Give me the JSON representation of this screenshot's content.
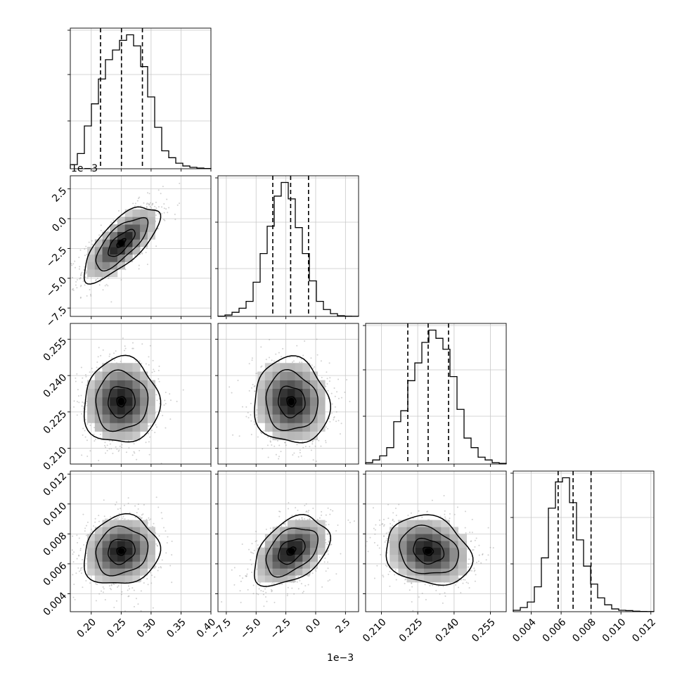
{
  "chart_data": {
    "type": "corner",
    "grid": true,
    "quantile_lines": "dashed",
    "parameters": [
      {
        "range": [
          0.165,
          0.4
        ],
        "ticks": [
          0.2,
          0.25,
          0.3,
          0.35,
          0.4
        ],
        "tick_labels": [
          "0.20",
          "0.25",
          "0.30",
          "0.35",
          "0.40"
        ],
        "quantiles": [
          0.2155,
          0.2505,
          0.2855
        ],
        "offset": ""
      },
      {
        "range": [
          -8.2,
          3.6
        ],
        "ticks": [
          -7.5,
          -5.0,
          -2.5,
          0.0,
          2.5
        ],
        "tick_labels": [
          "−7.5",
          "−5.0",
          "−2.5",
          "0.0",
          "2.5"
        ],
        "quantiles": [
          -3.6,
          -2.1,
          -0.6
        ],
        "offset": "1e−3"
      },
      {
        "range": [
          0.2035,
          0.2615
        ],
        "ticks": [
          0.21,
          0.225,
          0.24,
          0.255
        ],
        "tick_labels": [
          "0.210",
          "0.225",
          "0.240",
          "0.255"
        ],
        "quantiles": [
          0.2209,
          0.2293,
          0.2377
        ],
        "offset": ""
      },
      {
        "range": [
          0.0028,
          0.0122
        ],
        "ticks": [
          0.004,
          0.006,
          0.008,
          0.01,
          0.012
        ],
        "tick_labels": [
          "0.004",
          "0.006",
          "0.008",
          "0.010",
          "0.012"
        ],
        "quantiles": [
          0.0058,
          0.0068,
          0.008
        ],
        "offset": ""
      }
    ],
    "histograms": [
      {
        "edges_start": 0.165,
        "bin_width": 0.01175,
        "counts": [
          0.03,
          0.11,
          0.31,
          0.47,
          0.65,
          0.79,
          0.86,
          0.93,
          0.97,
          0.89,
          0.74,
          0.52,
          0.3,
          0.13,
          0.08,
          0.04,
          0.02,
          0.01,
          0.005,
          0.002
        ]
      },
      {
        "edges_start": -8.2,
        "bin_width": 0.59,
        "counts": [
          0.002,
          0.01,
          0.03,
          0.06,
          0.11,
          0.25,
          0.46,
          0.66,
          0.88,
          0.98,
          0.86,
          0.65,
          0.46,
          0.26,
          0.11,
          0.05,
          0.02,
          0.005,
          0.002,
          0.001
        ]
      },
      {
        "edges_start": 0.2035,
        "bin_width": 0.0029,
        "counts": [
          0.01,
          0.03,
          0.06,
          0.12,
          0.31,
          0.39,
          0.61,
          0.74,
          0.89,
          0.98,
          0.92,
          0.84,
          0.64,
          0.4,
          0.19,
          0.12,
          0.05,
          0.03,
          0.01,
          0.005
        ]
      },
      {
        "edges_start": 0.0028,
        "bin_width": 0.00047,
        "counts": [
          0.01,
          0.03,
          0.07,
          0.18,
          0.39,
          0.75,
          0.94,
          0.97,
          0.79,
          0.52,
          0.33,
          0.2,
          0.1,
          0.05,
          0.02,
          0.01,
          0.008,
          0.004,
          0.002,
          0.001
        ]
      }
    ],
    "pair_densities": [
      {
        "i": 1,
        "j": 0,
        "mean": [
          0.25,
          -2.05
        ],
        "sd": [
          0.03,
          1.5
        ],
        "rho": 0.72
      },
      {
        "i": 2,
        "j": 0,
        "mean": [
          0.25,
          0.2293
        ],
        "sd": [
          0.03,
          0.0084
        ],
        "rho": 0.03
      },
      {
        "i": 2,
        "j": 1,
        "mean": [
          -2.05,
          0.2293
        ],
        "sd": [
          1.5,
          0.0084
        ],
        "rho": -0.06
      },
      {
        "i": 3,
        "j": 0,
        "mean": [
          0.25,
          0.00685
        ],
        "sd": [
          0.03,
          0.0011
        ],
        "rho": 0.12
      },
      {
        "i": 3,
        "j": 1,
        "mean": [
          -2.05,
          0.00685
        ],
        "sd": [
          1.5,
          0.0011
        ],
        "rho": 0.42
      },
      {
        "i": 3,
        "j": 2,
        "mean": [
          0.2293,
          0.00685
        ],
        "sd": [
          0.0084,
          0.0011
        ],
        "rho": -0.18
      }
    ]
  }
}
